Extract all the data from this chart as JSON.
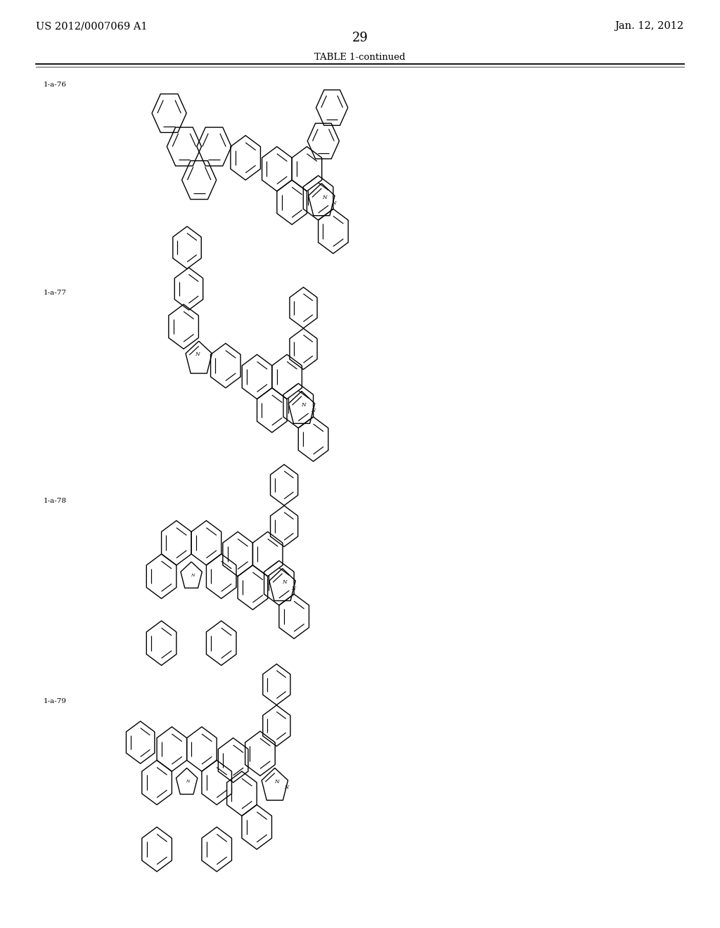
{
  "page_width": 10.24,
  "page_height": 13.2,
  "background_color": "#ffffff",
  "header_left": "US 2012/0007069 A1",
  "header_right": "Jan. 12, 2012",
  "page_number": "29",
  "table_title": "TABLE 1-continued",
  "text_color": "#000000",
  "line_color": "#000000",
  "header_fontsize": 11,
  "label_fontsize": 8,
  "title_fontsize": 10,
  "page_num_fontsize": 14
}
